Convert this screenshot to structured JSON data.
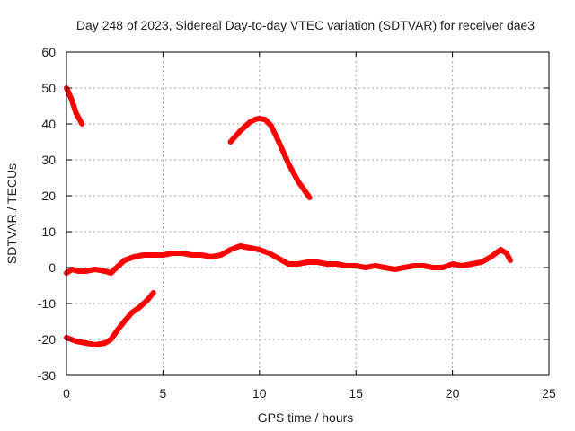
{
  "chart_data": {
    "type": "line",
    "title": "Day 248 of 2023, Sidereal Day-to-day VTEC variation (SDTVAR) for receiver dae3",
    "xlabel": "GPS time / hours",
    "ylabel": "SDTVAR / TECUs",
    "xlim": [
      0,
      25
    ],
    "ylim": [
      -30,
      60
    ],
    "xticks": [
      0,
      5,
      10,
      15,
      20,
      25
    ],
    "yticks": [
      -30,
      -20,
      -10,
      0,
      10,
      20,
      30,
      40,
      50,
      60
    ],
    "grid": true,
    "series_color": "#ff0000",
    "series": [
      {
        "name": "segment-1",
        "x": [
          0.0,
          0.25,
          0.5,
          0.8
        ],
        "y": [
          50,
          47,
          43,
          40
        ]
      },
      {
        "name": "segment-2",
        "x": [
          8.5,
          9.0,
          9.5,
          9.8,
          10.0,
          10.3,
          10.6,
          11.0,
          11.5,
          12.0,
          12.6
        ],
        "y": [
          35,
          38,
          40.5,
          41.3,
          41.5,
          41.2,
          39.5,
          35,
          29,
          24,
          19.5
        ]
      },
      {
        "name": "segment-3",
        "x": [
          0.0,
          0.5,
          1.0,
          1.5,
          2.0,
          2.3,
          2.7,
          3.0,
          3.4,
          3.8,
          4.2,
          4.5
        ],
        "y": [
          -19.5,
          -20.5,
          -21,
          -21.5,
          -21,
          -20,
          -17,
          -15,
          -12.5,
          -11,
          -9,
          -7
        ]
      },
      {
        "name": "segment-4",
        "x": [
          0.0,
          0.3,
          0.6,
          1.0,
          1.5,
          2.0,
          2.3,
          2.6,
          3.0,
          3.5,
          4.0,
          4.5,
          5.0,
          5.5,
          6.0,
          6.5,
          7.0,
          7.5,
          8.0,
          8.5,
          9.0,
          9.5,
          10.0,
          10.5,
          11.0,
          11.5,
          12.0,
          12.5,
          13.0,
          13.5,
          14.0,
          14.5,
          15.0,
          15.5,
          16.0,
          16.5,
          17.0,
          17.5,
          18.0,
          18.5,
          19.0,
          19.5,
          20.0,
          20.5,
          21.0,
          21.5,
          22.0,
          22.5,
          22.8,
          23.0
        ],
        "y": [
          -1.5,
          -0.5,
          -1,
          -1,
          -0.5,
          -1,
          -1.5,
          0,
          2,
          3,
          3.5,
          3.5,
          3.5,
          4,
          4,
          3.5,
          3.5,
          3,
          3.5,
          5,
          6,
          5.5,
          5,
          4,
          2.5,
          1,
          1,
          1.5,
          1.5,
          1,
          1,
          0.5,
          0.5,
          0,
          0.5,
          0,
          -0.5,
          0,
          0.5,
          0.5,
          0,
          0,
          1,
          0.5,
          1,
          1.5,
          3,
          5,
          4,
          2
        ]
      }
    ]
  }
}
